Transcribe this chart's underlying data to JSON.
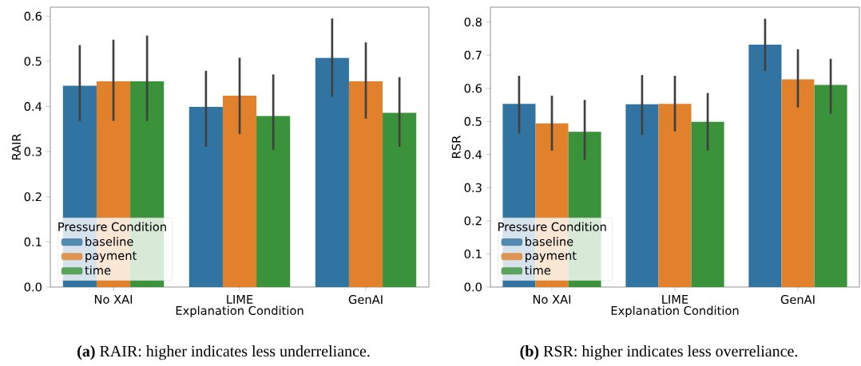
{
  "chart_data": [
    {
      "type": "bar",
      "categories": [
        "No XAI",
        "LIME",
        "GenAI"
      ],
      "xlabel": "Explanation Condition",
      "ylabel": "RAIR",
      "legend_title": "Pressure Condition",
      "legend": "bottom left",
      "ylim": [
        0,
        0.62
      ],
      "yticks": [
        {
          "value": 0,
          "label": "0.0"
        },
        0.1,
        0.2,
        0.3,
        0.4,
        0.5,
        0.6
      ],
      "series": [
        {
          "name": "baseline",
          "color": "#3274a1",
          "values": [
            0.446,
            0.399,
            0.508
          ],
          "errors": [
            [
              0.368,
              0.536
            ],
            [
              0.311,
              0.479
            ],
            [
              0.422,
              0.595
            ]
          ]
        },
        {
          "name": "payment",
          "color": "#e1812c",
          "values": [
            0.456,
            0.424,
            0.456
          ],
          "errors": [
            [
              0.368,
              0.548
            ],
            [
              0.339,
              0.508
            ],
            [
              0.373,
              0.542
            ]
          ]
        },
        {
          "name": "time",
          "color": "#3a923a",
          "values": [
            0.456,
            0.379,
            0.386
          ],
          "errors": [
            [
              0.368,
              0.557
            ],
            [
              0.304,
              0.471
            ],
            [
              0.311,
              0.465
            ]
          ]
        }
      ],
      "annotations": [
        "**(a)** RAIR: higher indicates less underreliance."
      ]
    },
    {
      "type": "bar",
      "categories": [
        "No XAI",
        "LIME",
        "GenAI"
      ],
      "xlabel": "Explanation Condition",
      "ylabel": "RSR",
      "legend_title": "Pressure Condition",
      "legend": "bottom left",
      "ylim": [
        0,
        0.845
      ],
      "yticks": [
        {
          "value": 0,
          "label": "0.0"
        },
        0.1,
        0.2,
        0.3,
        0.4,
        0.5,
        0.6,
        0.7,
        0.8
      ],
      "series": [
        {
          "name": "baseline",
          "color": "#3274a1",
          "values": [
            0.553,
            0.552,
            0.732
          ],
          "errors": [
            [
              0.464,
              0.638
            ],
            [
              0.459,
              0.64
            ],
            [
              0.652,
              0.81
            ]
          ]
        },
        {
          "name": "payment",
          "color": "#e1812c",
          "values": [
            0.494,
            0.553,
            0.627
          ],
          "errors": [
            [
              0.412,
              0.578
            ],
            [
              0.47,
              0.638
            ],
            [
              0.542,
              0.718
            ]
          ]
        },
        {
          "name": "time",
          "color": "#3a923a",
          "values": [
            0.469,
            0.499,
            0.61
          ],
          "errors": [
            [
              0.384,
              0.565
            ],
            [
              0.412,
              0.586
            ],
            [
              0.523,
              0.689
            ]
          ]
        }
      ],
      "annotations": [
        "**(b)** RSR: higher indicates less overreliance."
      ]
    }
  ]
}
